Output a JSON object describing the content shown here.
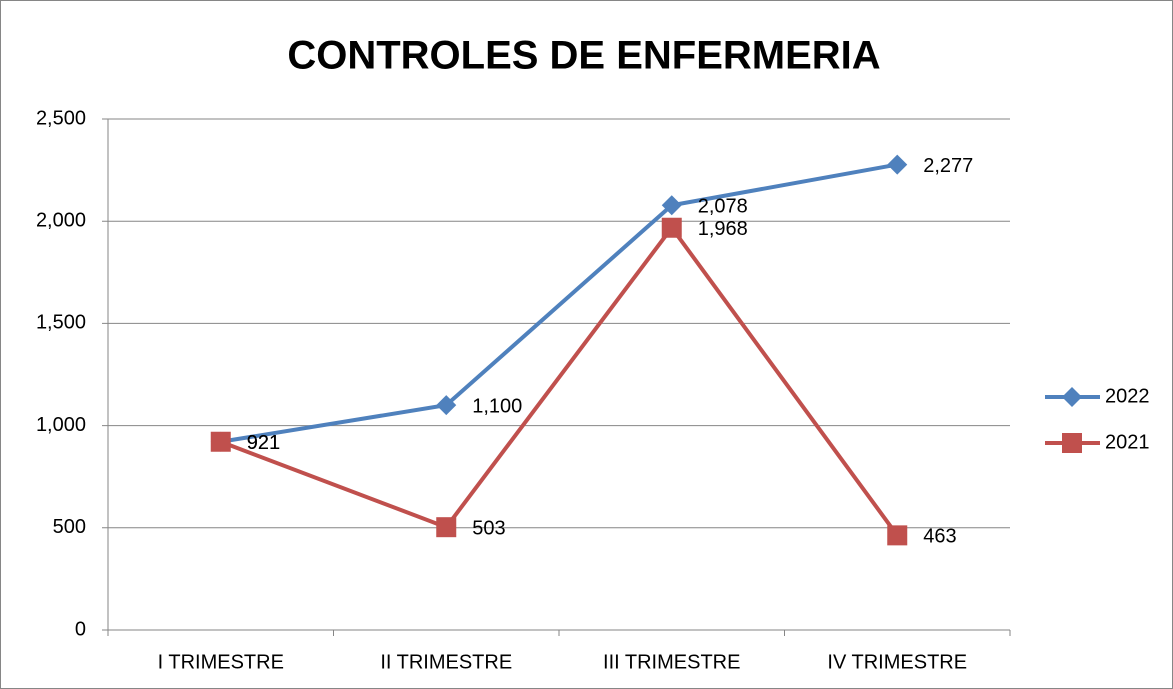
{
  "chart_data": {
    "type": "line",
    "title": "CONTROLES DE ENFERMERIA",
    "categories": [
      "I TRIMESTRE",
      "II TRIMESTRE",
      "III TRIMESTRE",
      "IV TRIMESTRE"
    ],
    "series": [
      {
        "name": "2022",
        "color": "#4f81bd",
        "marker": "diamond",
        "values": [
          921,
          1100,
          2078,
          2277
        ],
        "value_labels": [
          "921",
          "1,100",
          "2,078",
          "2,277"
        ]
      },
      {
        "name": "2021",
        "color": "#c0504d",
        "marker": "square",
        "values": [
          921,
          503,
          1968,
          463
        ],
        "value_labels": [
          "921",
          "503",
          "1,968",
          "463"
        ]
      }
    ],
    "ylim": [
      0,
      2500
    ],
    "yticks": [
      0,
      {
        "value": 500,
        "label": "500"
      },
      {
        "value": 1000,
        "label": "1,000"
      },
      {
        "value": 1500,
        "label": "1,500"
      },
      {
        "value": 2000,
        "label": "2,000"
      },
      {
        "value": 2500,
        "label": "2,500"
      }
    ],
    "grid": true,
    "legend": "right"
  }
}
